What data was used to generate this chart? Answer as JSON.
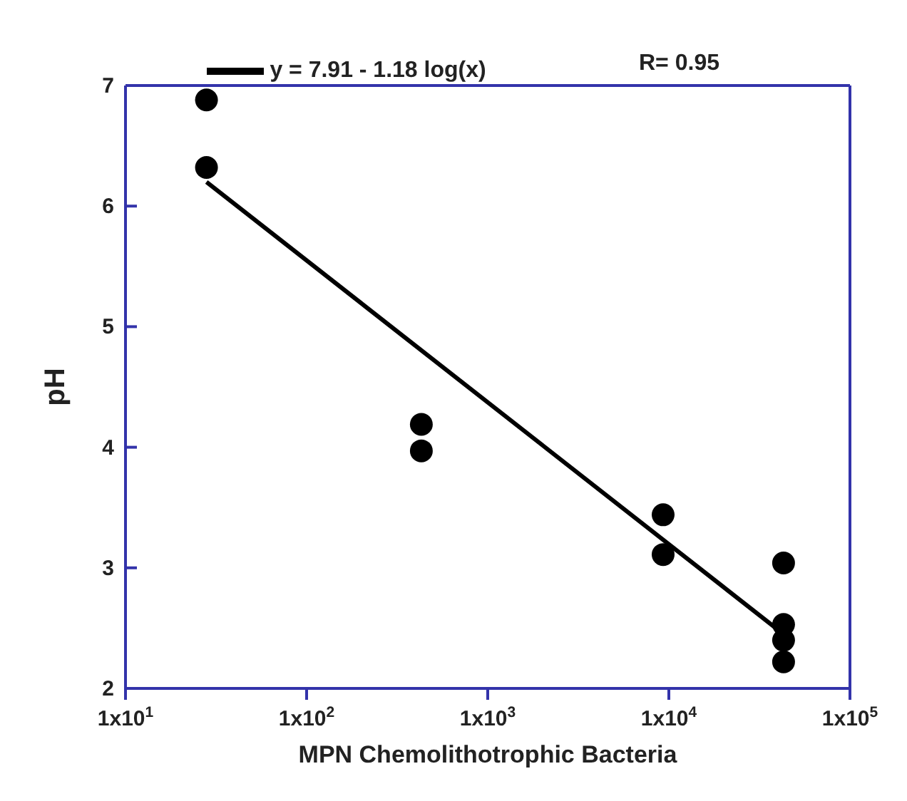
{
  "chart_data": {
    "type": "scatter",
    "xlabel": "MPN Chemolithotrophic Bacteria",
    "ylabel": "pH",
    "log": "x",
    "xlim": [
      10,
      100000
    ],
    "ylim": [
      2,
      7
    ],
    "xticks": [
      {
        "value": 10,
        "label": "1x10$^{1}$"
      },
      {
        "value": 100,
        "label": "1x10$^{2}$"
      },
      {
        "value": 1000,
        "label": "1x10$^{3}$"
      },
      {
        "value": 10000,
        "label": "1x10$^{4}$"
      },
      {
        "value": 100000,
        "label": "1x10$^{5}$"
      }
    ],
    "yticks": [
      2,
      3,
      4,
      5,
      6,
      7
    ],
    "grid": false,
    "legend": "top",
    "marker": "circle",
    "series": [
      {
        "color": "#000000",
        "x": [
          28,
          28,
          430,
          430,
          9300,
          9300,
          43000,
          43000,
          43000,
          43000
        ],
        "values": [
          6.88,
          6.32,
          4.19,
          3.97,
          3.44,
          3.11,
          3.04,
          2.53,
          2.4,
          2.22
        ]
      },
      {
        "type": "line",
        "name": "y = 7.91 - 1.18 log(x)",
        "color": "#000000",
        "line_style": "solid",
        "marker": "none",
        "x": [
          28,
          43000
        ],
        "values": [
          6.2,
          2.45
        ]
      }
    ],
    "annotations": [
      "R= 0.95"
    ]
  }
}
